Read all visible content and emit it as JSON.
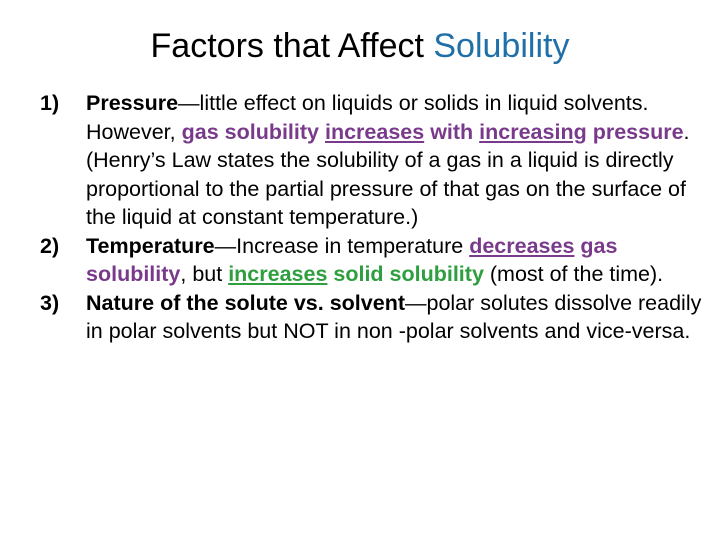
{
  "slide": {
    "title_main": "Factors that Affect ",
    "title_accent": "Solubility",
    "accent_color": "#1f6fa8",
    "items": [
      {
        "number": "1)",
        "term": "Pressure",
        "dash": "—",
        "text_a": "little effect on liquids or solids in liquid solvents.  However, ",
        "hl_1": "gas solubility",
        "sp_1": " ",
        "hl_2": "increases",
        "sp_2": " ",
        "hl_3": "with",
        "sp_3": " ",
        "hl_4": "increasing",
        "sp_4": " ",
        "hl_5": "pressure",
        "text_b": ".  (Henry’s Law states the solubility of a gas in a liquid is directly proportional to the partial pressure of that gas on the surface of the liquid at constant temperature.)"
      },
      {
        "number": "2)",
        "term": "Temperature",
        "dash": "—",
        "text_a": "Increase in temperature ",
        "hl_1": "decreases",
        "sp_1": " ",
        "hl_2": "gas solubility",
        "text_b": ", but ",
        "hl_3": "increases",
        "sp_3": " ",
        "hl_4": "solid solubility",
        "text_c": " (most of the time)."
      },
      {
        "number": "3)",
        "term": "Nature of the solute vs. solvent",
        "dash": "—",
        "text_a": "polar solutes dissolve readily in polar solvents but NOT in non -polar solvents and vice-versa."
      }
    ]
  }
}
